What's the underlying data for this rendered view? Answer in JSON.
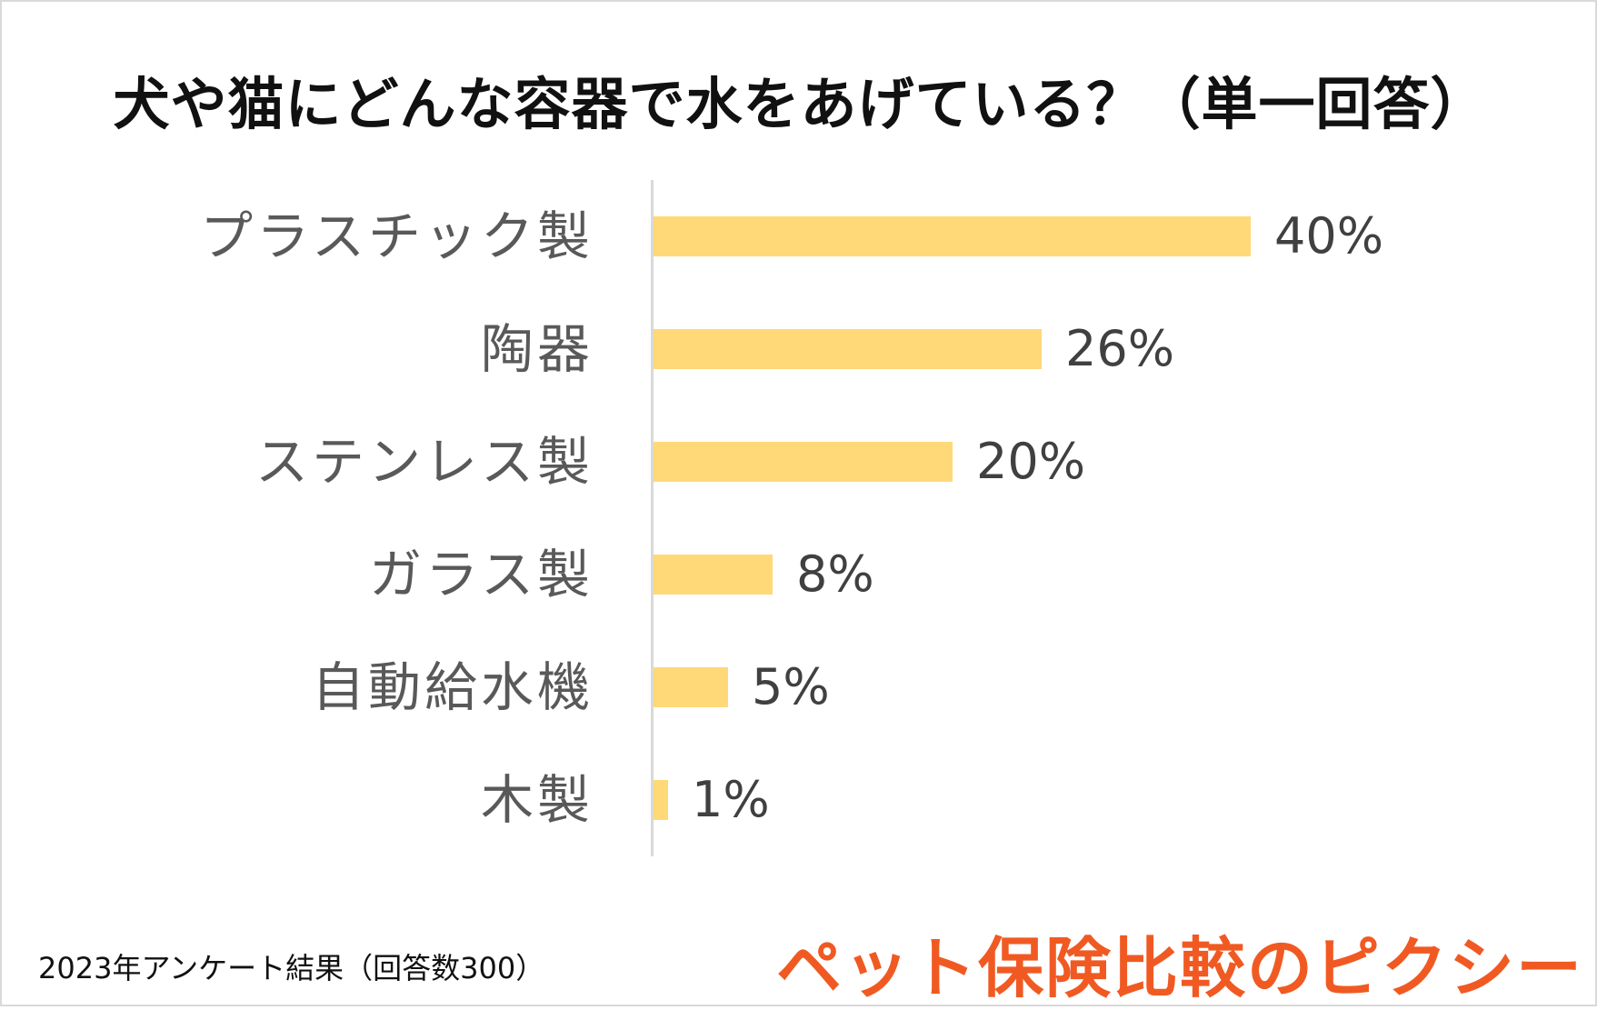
{
  "chart_data": {
    "type": "bar",
    "orientation": "horizontal",
    "title": "犬や猫にどんな容器で水をあげている？（単一回答）",
    "categories": [
      "プラスチック製",
      "陶器",
      "ステンレス製",
      "ガラス製",
      "自動給水機",
      "木製"
    ],
    "values": [
      40,
      26,
      20,
      8,
      5,
      1
    ],
    "value_labels": [
      "40%",
      "26%",
      "20%",
      "8%",
      "5%",
      "1%"
    ],
    "unit": "%",
    "xlim": [
      0,
      40
    ],
    "grid": false,
    "legend": "none",
    "bar_color": "#ffd978"
  },
  "footnote": "2023年アンケート結果（回答数300）",
  "logo_text": "ペット保険比較のピクシー",
  "colors": {
    "bar": "#ffd978",
    "logo": "#f05a22",
    "axis": "#d9d9d9"
  }
}
